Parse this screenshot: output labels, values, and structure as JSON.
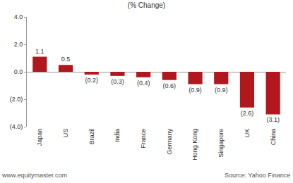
{
  "chart_data": {
    "type": "bar",
    "title": "(% Change)",
    "categories": [
      "Japan",
      "US",
      "Brazil",
      "India",
      "France",
      "Germany",
      "Hong Kong",
      "Singapore",
      "UK",
      "China"
    ],
    "values": [
      1.1,
      0.5,
      -0.2,
      -0.3,
      -0.4,
      -0.6,
      -0.9,
      -0.9,
      -2.6,
      -3.1
    ],
    "value_labels": [
      "1.1",
      "0.5",
      "(0.2)",
      "(0.3)",
      "(0.4)",
      "(0.6)",
      "(0.9)",
      "(0.9)",
      "(2.6)",
      "(3.1)"
    ],
    "color": "#b0181e",
    "ylim": [
      -4,
      4
    ],
    "yticks": [
      {
        "value": 4,
        "label": "4.0"
      },
      {
        "value": 2,
        "label": "2.0"
      },
      {
        "value": 0,
        "label": "0.0"
      },
      {
        "value": -2,
        "label": "(2.0)"
      },
      {
        "value": -4,
        "label": "(4.0)"
      }
    ],
    "grid": false,
    "data_labels": true,
    "annotations": [
      "www.equitymaster.com",
      "Source: Yahoo Finance"
    ]
  }
}
